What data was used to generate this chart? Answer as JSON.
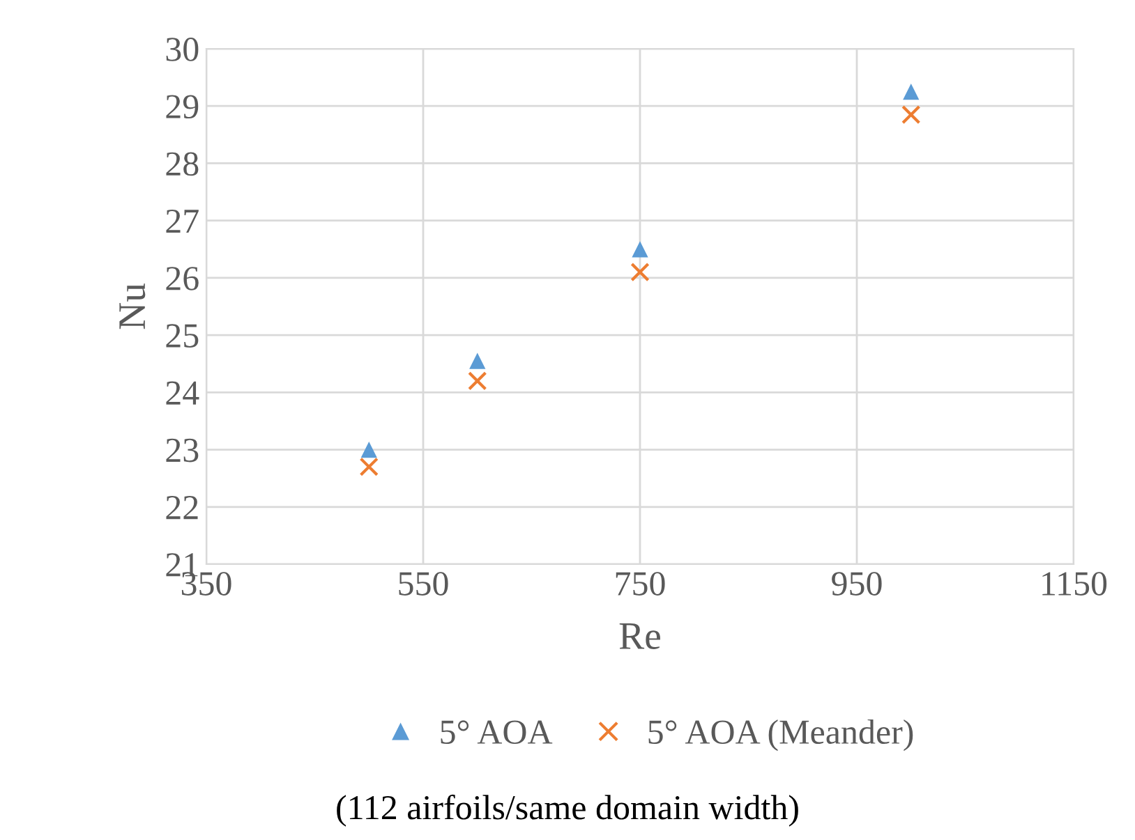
{
  "chart_data": {
    "type": "scatter",
    "xlabel": "Re",
    "ylabel": "Nu",
    "xlim": [
      350,
      1150
    ],
    "xticks": [
      350,
      550,
      750,
      950,
      1150
    ],
    "ylim": [
      21,
      30
    ],
    "yticks": [
      21,
      22,
      23,
      24,
      25,
      26,
      27,
      28,
      29,
      30
    ],
    "grid": true,
    "legend": "bottom",
    "x": [
      500,
      600,
      750,
      1000
    ],
    "series": [
      {
        "name": "5° AOA",
        "color": "#5b9bd5",
        "marker": "triangle",
        "values": [
          23.0,
          24.55,
          26.5,
          29.25
        ]
      },
      {
        "name": "5° AOA (Meander)",
        "color": "#ed7d31",
        "marker": "cross",
        "values": [
          22.7,
          24.2,
          26.1,
          28.85
        ]
      }
    ],
    "annotations": [
      "(112 airfoils/same domain width)"
    ]
  }
}
